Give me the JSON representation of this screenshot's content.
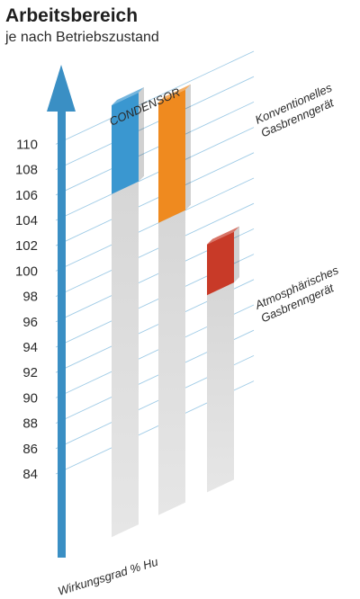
{
  "title": "Arbeitsbereich",
  "subtitle": "je nach Betriebszustand",
  "chart_data": {
    "type": "bar",
    "chart_style": "3d-floating-range",
    "categories": [
      "CONDENSOR",
      "Konventionelles Gasbrenngerät",
      "Atmosphärisches Gasbrenngerät"
    ],
    "category_label_lines": [
      [
        "CONDENSOR"
      ],
      [
        "Konventionelles",
        "Gasbrenngerät"
      ],
      [
        "Atmosphärisches",
        "Gasbrenngerät"
      ]
    ],
    "series": [
      {
        "low": 104,
        "high": 111,
        "color": "#3a97d0"
      },
      {
        "low": 100,
        "high": 109.5,
        "color": "#ef8a1f"
      },
      {
        "low": 92.5,
        "high": 96.5,
        "color": "#c83a28"
      }
    ],
    "yticks": [
      84,
      86,
      88,
      90,
      92,
      94,
      96,
      98,
      100,
      102,
      104,
      106,
      108,
      110
    ],
    "ylabel": "Wirkungsgrad % Hu",
    "grid": true,
    "axis_color": "#3a8fc4"
  }
}
